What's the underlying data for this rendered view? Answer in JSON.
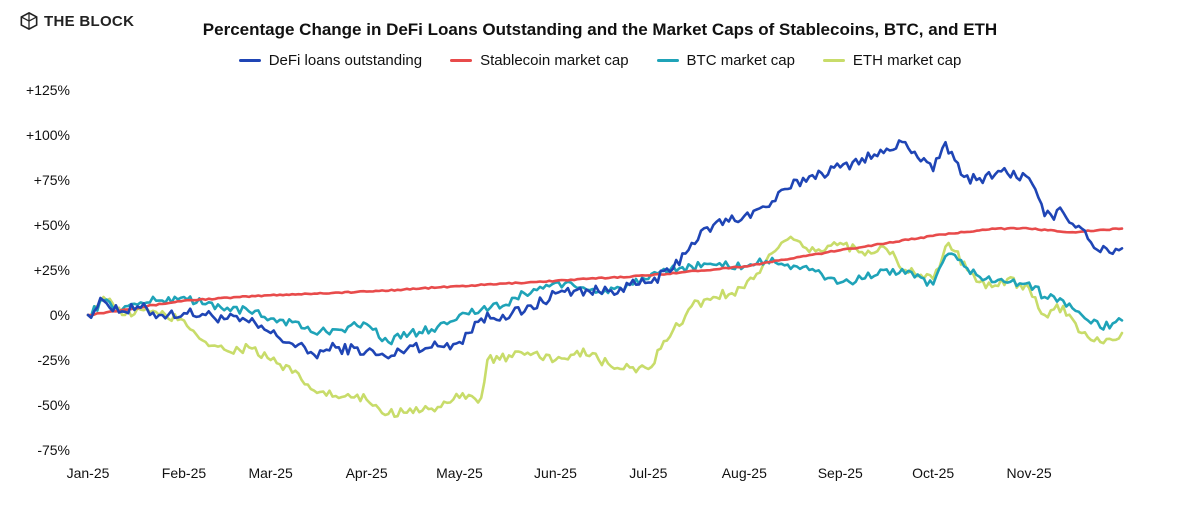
{
  "brand": {
    "name": "THE BLOCK",
    "icon": "the-block-logo-icon"
  },
  "chart_data": {
    "type": "line",
    "title": "Percentage Change in DeFi Loans Outstanding and the Market Caps of Stablecoins, BTC, and ETH",
    "xlabel": "",
    "ylabel": "",
    "y_unit": "%",
    "ylim": [
      -75,
      125
    ],
    "y_ticks": [
      -75,
      -50,
      -25,
      0,
      25,
      50,
      75,
      100,
      125
    ],
    "y_tick_labels": [
      "-75%",
      "-50%",
      "-25%",
      "0%",
      "+25%",
      "+50%",
      "+75%",
      "+100%",
      "+125%"
    ],
    "x_ticks": [
      "2025-01-01",
      "2025-02-01",
      "2025-03-01",
      "2025-04-01",
      "2025-05-01",
      "2025-06-01",
      "2025-07-01",
      "2025-08-01",
      "2025-09-01",
      "2025-10-01",
      "2025-11-01"
    ],
    "x_tick_labels": [
      "Jan-25",
      "Feb-25",
      "Mar-25",
      "Apr-25",
      "May-25",
      "Jun-25",
      "Jul-25",
      "Aug-25",
      "Sep-25",
      "Oct-25",
      "Nov-25"
    ],
    "xlim": [
      "2025-01-01",
      "2025-12-01"
    ],
    "grid": false,
    "legend_position": "top-center",
    "series": [
      {
        "name": "DeFi loans outstanding",
        "color": "#1f45b5",
        "points": [
          [
            "2025-01-01",
            0
          ],
          [
            "2025-01-06",
            8
          ],
          [
            "2025-01-12",
            2
          ],
          [
            "2025-01-18",
            4
          ],
          [
            "2025-01-24",
            0
          ],
          [
            "2025-02-01",
            1
          ],
          [
            "2025-02-08",
            0
          ],
          [
            "2025-02-15",
            -2
          ],
          [
            "2025-02-22",
            -4
          ],
          [
            "2025-03-01",
            -10
          ],
          [
            "2025-03-08",
            -16
          ],
          [
            "2025-03-15",
            -22
          ],
          [
            "2025-03-22",
            -18
          ],
          [
            "2025-04-01",
            -20
          ],
          [
            "2025-04-08",
            -24
          ],
          [
            "2025-04-15",
            -17
          ],
          [
            "2025-04-22",
            -18
          ],
          [
            "2025-05-01",
            -15
          ],
          [
            "2025-05-08",
            -2
          ],
          [
            "2025-05-15",
            0
          ],
          [
            "2025-05-22",
            2
          ],
          [
            "2025-06-01",
            12
          ],
          [
            "2025-06-08",
            14
          ],
          [
            "2025-06-15",
            13
          ],
          [
            "2025-06-22",
            15
          ],
          [
            "2025-07-01",
            18
          ],
          [
            "2025-07-08",
            24
          ],
          [
            "2025-07-15",
            40
          ],
          [
            "2025-07-22",
            50
          ],
          [
            "2025-08-01",
            55
          ],
          [
            "2025-08-08",
            60
          ],
          [
            "2025-08-15",
            70
          ],
          [
            "2025-08-22",
            77
          ],
          [
            "2025-09-01",
            82
          ],
          [
            "2025-09-08",
            87
          ],
          [
            "2025-09-15",
            90
          ],
          [
            "2025-09-22",
            96
          ],
          [
            "2025-10-01",
            80
          ],
          [
            "2025-10-05",
            96
          ],
          [
            "2025-10-10",
            78
          ],
          [
            "2025-10-15",
            75
          ],
          [
            "2025-10-22",
            80
          ],
          [
            "2025-11-01",
            76
          ],
          [
            "2025-11-06",
            55
          ],
          [
            "2025-11-12",
            57
          ],
          [
            "2025-11-18",
            48
          ],
          [
            "2025-11-24",
            35
          ],
          [
            "2025-12-01",
            37
          ]
        ]
      },
      {
        "name": "Stablecoin market cap",
        "color": "#e84b4b",
        "points": [
          [
            "2025-01-01",
            0
          ],
          [
            "2025-02-01",
            8
          ],
          [
            "2025-03-01",
            11
          ],
          [
            "2025-04-01",
            13
          ],
          [
            "2025-05-01",
            16
          ],
          [
            "2025-06-01",
            19
          ],
          [
            "2025-07-01",
            22
          ],
          [
            "2025-08-01",
            27
          ],
          [
            "2025-09-01",
            36
          ],
          [
            "2025-10-01",
            44
          ],
          [
            "2025-10-20",
            48
          ],
          [
            "2025-11-01",
            48
          ],
          [
            "2025-11-15",
            46
          ],
          [
            "2025-12-01",
            48
          ]
        ]
      },
      {
        "name": "BTC market cap",
        "color": "#1fa3b8",
        "points": [
          [
            "2025-01-01",
            0
          ],
          [
            "2025-01-06",
            8
          ],
          [
            "2025-01-12",
            3
          ],
          [
            "2025-01-18",
            7
          ],
          [
            "2025-01-24",
            8
          ],
          [
            "2025-02-01",
            10
          ],
          [
            "2025-02-08",
            6
          ],
          [
            "2025-02-15",
            4
          ],
          [
            "2025-02-22",
            2
          ],
          [
            "2025-03-01",
            -2
          ],
          [
            "2025-03-08",
            -4
          ],
          [
            "2025-03-15",
            -10
          ],
          [
            "2025-03-22",
            -8
          ],
          [
            "2025-04-01",
            -5
          ],
          [
            "2025-04-08",
            -15
          ],
          [
            "2025-04-15",
            -10
          ],
          [
            "2025-04-22",
            -8
          ],
          [
            "2025-05-01",
            0
          ],
          [
            "2025-05-08",
            3
          ],
          [
            "2025-05-15",
            5
          ],
          [
            "2025-05-22",
            12
          ],
          [
            "2025-06-01",
            18
          ],
          [
            "2025-06-08",
            15
          ],
          [
            "2025-06-15",
            13
          ],
          [
            "2025-06-22",
            15
          ],
          [
            "2025-07-01",
            20
          ],
          [
            "2025-07-08",
            25
          ],
          [
            "2025-07-15",
            27
          ],
          [
            "2025-07-22",
            28
          ],
          [
            "2025-08-01",
            27
          ],
          [
            "2025-08-08",
            30
          ],
          [
            "2025-08-15",
            28
          ],
          [
            "2025-08-22",
            25
          ],
          [
            "2025-09-01",
            18
          ],
          [
            "2025-09-08",
            20
          ],
          [
            "2025-09-15",
            25
          ],
          [
            "2025-09-22",
            23
          ],
          [
            "2025-10-01",
            17
          ],
          [
            "2025-10-06",
            34
          ],
          [
            "2025-10-12",
            26
          ],
          [
            "2025-10-18",
            20
          ],
          [
            "2025-10-25",
            18
          ],
          [
            "2025-11-01",
            18
          ],
          [
            "2025-11-06",
            10
          ],
          [
            "2025-11-12",
            8
          ],
          [
            "2025-11-18",
            0
          ],
          [
            "2025-11-24",
            -7
          ],
          [
            "2025-12-01",
            -3
          ]
        ]
      },
      {
        "name": "ETH market cap",
        "color": "#c8dc6a",
        "points": [
          [
            "2025-01-01",
            0
          ],
          [
            "2025-01-06",
            10
          ],
          [
            "2025-01-12",
            0
          ],
          [
            "2025-01-18",
            3
          ],
          [
            "2025-01-24",
            0
          ],
          [
            "2025-02-01",
            -3
          ],
          [
            "2025-02-08",
            -15
          ],
          [
            "2025-02-15",
            -20
          ],
          [
            "2025-02-22",
            -18
          ],
          [
            "2025-03-01",
            -25
          ],
          [
            "2025-03-08",
            -32
          ],
          [
            "2025-03-15",
            -42
          ],
          [
            "2025-03-22",
            -45
          ],
          [
            "2025-04-01",
            -47
          ],
          [
            "2025-04-08",
            -55
          ],
          [
            "2025-04-15",
            -52
          ],
          [
            "2025-04-22",
            -52
          ],
          [
            "2025-05-01",
            -46
          ],
          [
            "2025-05-08",
            -46
          ],
          [
            "2025-05-10",
            -25
          ],
          [
            "2025-05-22",
            -22
          ],
          [
            "2025-06-01",
            -25
          ],
          [
            "2025-06-08",
            -20
          ],
          [
            "2025-06-15",
            -25
          ],
          [
            "2025-06-22",
            -30
          ],
          [
            "2025-07-01",
            -30
          ],
          [
            "2025-07-08",
            -12
          ],
          [
            "2025-07-15",
            5
          ],
          [
            "2025-07-22",
            10
          ],
          [
            "2025-08-01",
            15
          ],
          [
            "2025-08-08",
            30
          ],
          [
            "2025-08-15",
            42
          ],
          [
            "2025-08-22",
            35
          ],
          [
            "2025-09-01",
            40
          ],
          [
            "2025-09-08",
            35
          ],
          [
            "2025-09-15",
            38
          ],
          [
            "2025-09-22",
            25
          ],
          [
            "2025-10-01",
            20
          ],
          [
            "2025-10-06",
            40
          ],
          [
            "2025-10-12",
            25
          ],
          [
            "2025-10-18",
            15
          ],
          [
            "2025-10-25",
            20
          ],
          [
            "2025-11-01",
            15
          ],
          [
            "2025-11-06",
            0
          ],
          [
            "2025-11-12",
            5
          ],
          [
            "2025-11-18",
            -10
          ],
          [
            "2025-11-24",
            -15
          ],
          [
            "2025-12-01",
            -10
          ]
        ]
      }
    ]
  }
}
